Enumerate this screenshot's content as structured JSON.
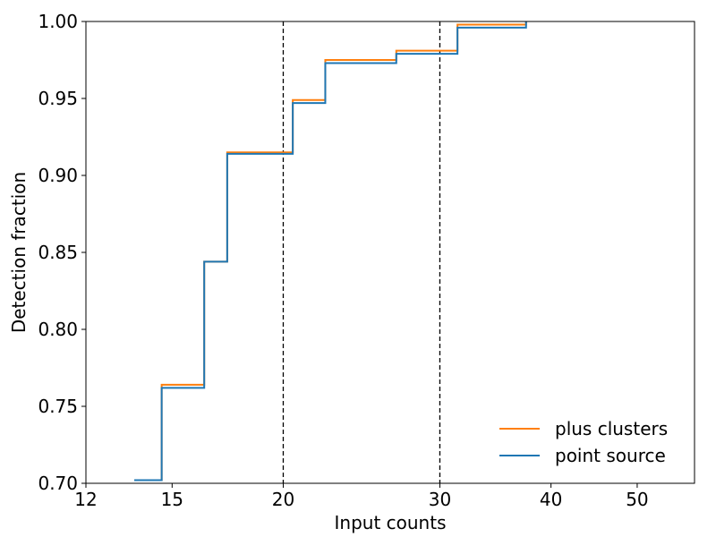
{
  "chart_data": {
    "type": "line",
    "drawstyle": "steps-post",
    "title": "",
    "xlabel": "Input counts",
    "ylabel": "Detection fraction",
    "xscale": "log",
    "xlim": [
      12,
      58
    ],
    "ylim": [
      0.7,
      1.0
    ],
    "xticks": [
      12,
      15,
      20,
      30,
      40,
      50
    ],
    "xtick_labels": [
      "12",
      "15",
      "20",
      "30",
      "40",
      "50"
    ],
    "yticks": [
      0.7,
      0.75,
      0.8,
      0.85,
      0.9,
      0.95,
      1.0
    ],
    "ytick_labels": [
      "0.70",
      "0.75",
      "0.80",
      "0.85",
      "0.90",
      "0.95",
      "1.00"
    ],
    "vlines": [
      {
        "x": 20,
        "style": "dashed",
        "color": "#000000"
      },
      {
        "x": 30,
        "style": "dashed",
        "color": "#000000"
      }
    ],
    "series": [
      {
        "name": "plus clusters",
        "color": "#ff7f0e",
        "x": [
          13.6,
          14.6,
          16.3,
          17.3,
          20.5,
          22.3,
          26.8,
          31.4,
          37.5
        ],
        "y": [
          0.702,
          0.764,
          0.844,
          0.915,
          0.949,
          0.975,
          0.981,
          0.998,
          1.0
        ]
      },
      {
        "name": "point source",
        "color": "#1f77b4",
        "x": [
          13.6,
          14.6,
          16.3,
          17.3,
          20.5,
          22.3,
          26.8,
          31.4,
          37.5
        ],
        "y": [
          0.702,
          0.762,
          0.844,
          0.914,
          0.947,
          0.973,
          0.979,
          0.996,
          1.0
        ]
      }
    ],
    "grid": false,
    "legend": {
      "placement": "lower-right",
      "frame": false,
      "entries": [
        "plus clusters",
        "point source"
      ]
    }
  }
}
